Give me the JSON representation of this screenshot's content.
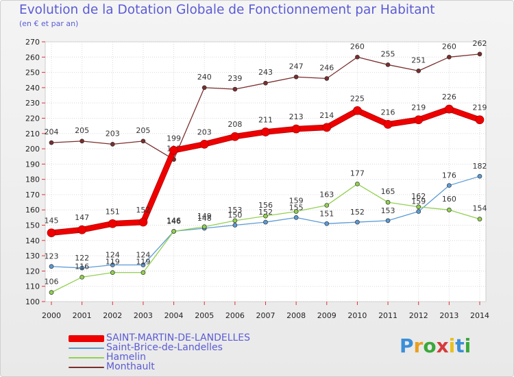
{
  "header": {
    "title": "Evolution de la Dotation Globale de Fonctionnement par Habitant",
    "subtitle": "(en € et par an)"
  },
  "brand": {
    "text": "Proxiti",
    "letter_colors": [
      "#3a8fd8",
      "#e8a020",
      "#3aa83a",
      "#d63a3a",
      "#e8c020",
      "#3a8fd8",
      "#3aa83a"
    ]
  },
  "chart_data": {
    "type": "line",
    "x": [
      2000,
      2001,
      2002,
      2003,
      2004,
      2005,
      2006,
      2007,
      2008,
      2009,
      2010,
      2011,
      2012,
      2013,
      2014
    ],
    "ylim": [
      100,
      270
    ],
    "yticks": [
      100,
      110,
      120,
      130,
      140,
      150,
      160,
      170,
      180,
      190,
      200,
      210,
      220,
      230,
      240,
      250,
      260,
      270
    ],
    "grid": true,
    "legend_position": "bottom-left",
    "series": [
      {
        "name": "SAINT-MARTIN-DE-LANDELLES",
        "color": "#ee0000",
        "emphasis": true,
        "values": [
          145,
          147,
          151,
          152,
          199,
          203,
          208,
          211,
          213,
          214,
          225,
          216,
          219,
          226,
          219
        ]
      },
      {
        "name": "Saint-Brice-de-Landelles",
        "color": "#5b9bd5",
        "emphasis": false,
        "values": [
          123,
          122,
          124,
          124,
          146,
          148,
          150,
          152,
          155,
          151,
          152,
          153,
          159,
          176,
          182
        ]
      },
      {
        "name": "Hamelin",
        "color": "#92d050",
        "emphasis": false,
        "values": [
          106,
          116,
          119,
          119,
          146,
          149,
          153,
          156,
          159,
          163,
          177,
          165,
          162,
          160,
          154
        ]
      },
      {
        "name": "Monthault",
        "color": "#7b2d2d",
        "emphasis": false,
        "values": [
          204,
          205,
          203,
          205,
          193,
          240,
          239,
          243,
          247,
          246,
          260,
          255,
          251,
          260,
          262
        ]
      }
    ]
  }
}
